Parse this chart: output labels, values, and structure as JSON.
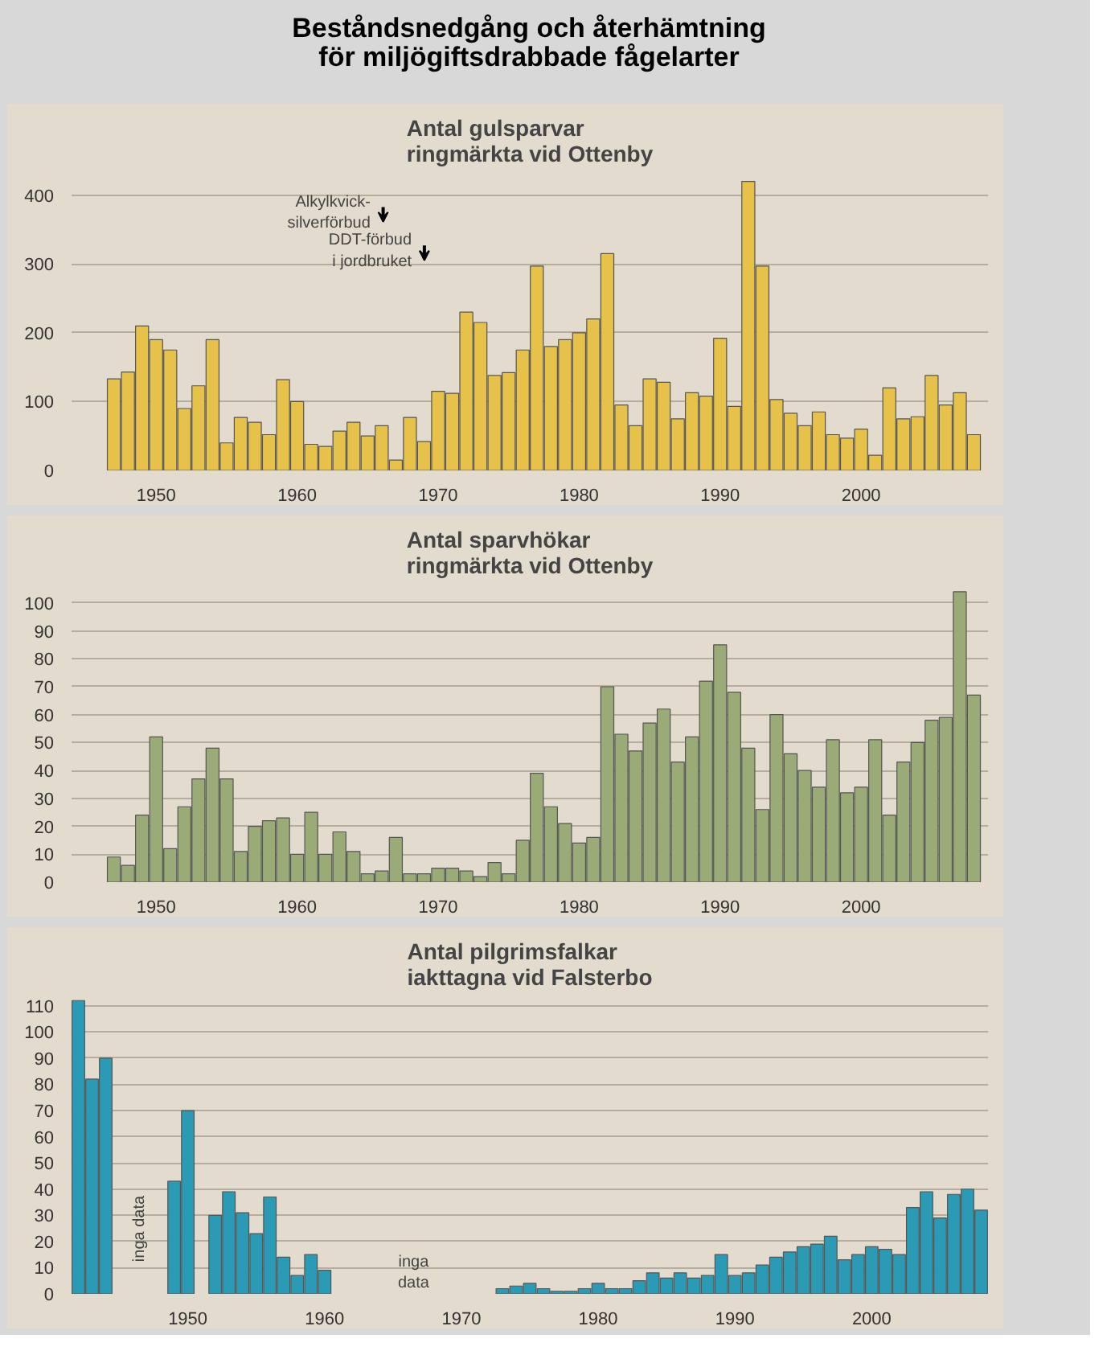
{
  "chart_data": [
    {
      "type": "bar",
      "title": "Antal gulsparvar\nringmärkta vid Ottenby",
      "x": [
        1947,
        1948,
        1949,
        1950,
        1951,
        1952,
        1953,
        1954,
        1955,
        1956,
        1957,
        1958,
        1959,
        1960,
        1961,
        1962,
        1963,
        1964,
        1965,
        1966,
        1967,
        1968,
        1969,
        1970,
        1971,
        1972,
        1973,
        1974,
        1975,
        1976,
        1977,
        1978,
        1979,
        1980,
        1981,
        1982,
        1983,
        1984,
        1985,
        1986,
        1987,
        1988,
        1989,
        1990,
        1991,
        1992,
        1993,
        1994,
        1995,
        1996,
        1997,
        1998,
        1999,
        2000,
        2001,
        2002,
        2003,
        2004,
        2005,
        2006,
        2007,
        2008
      ],
      "series": [
        {
          "color": "#e6c24a",
          "values": [
            133,
            143,
            210,
            190,
            175,
            90,
            123,
            190,
            40,
            77,
            70,
            52,
            132,
            100,
            38,
            35,
            57,
            70,
            50,
            65,
            15,
            77,
            42,
            115,
            112,
            230,
            215,
            138,
            142,
            175,
            297,
            180,
            190,
            200,
            220,
            315,
            95,
            65,
            133,
            128,
            75,
            113,
            108,
            192,
            93,
            420,
            297,
            103,
            83,
            65,
            85,
            52,
            47,
            60,
            22,
            120,
            75,
            78,
            138,
            95,
            113,
            52
          ]
        }
      ],
      "xlim": [
        1944,
        2009
      ],
      "ylim": [
        0,
        430
      ],
      "xticks": [
        1950,
        1960,
        1970,
        1980,
        1990,
        2000
      ],
      "yticks": [
        0,
        100,
        200,
        300,
        400
      ],
      "grid": "y",
      "annotations": [
        "Beståndsnedgång och återhämtning\nför miljögiftsdrabbade fågelarter",
        "Alkylkvick-\nsilverförbud",
        "DDT-förbud\ni jordbruket"
      ]
    },
    {
      "type": "bar",
      "title": "Antal sparvhökar\nringmärkta vid Ottenby",
      "x": [
        1947,
        1948,
        1949,
        1950,
        1951,
        1952,
        1953,
        1954,
        1955,
        1956,
        1957,
        1958,
        1959,
        1960,
        1961,
        1962,
        1963,
        1964,
        1965,
        1966,
        1967,
        1968,
        1969,
        1970,
        1971,
        1972,
        1973,
        1974,
        1975,
        1976,
        1977,
        1978,
        1979,
        1980,
        1981,
        1982,
        1983,
        1984,
        1985,
        1986,
        1987,
        1988,
        1989,
        1990,
        1991,
        1992,
        1993,
        1994,
        1995,
        1996,
        1997,
        1998,
        1999,
        2000,
        2001,
        2002,
        2003,
        2004,
        2005,
        2006,
        2007,
        2008
      ],
      "series": [
        {
          "color": "#9aab78",
          "values": [
            9,
            6,
            24,
            52,
            12,
            27,
            37,
            48,
            37,
            11,
            20,
            22,
            23,
            10,
            25,
            10,
            18,
            11,
            3,
            4,
            16,
            3,
            3,
            5,
            5,
            4,
            2,
            7,
            3,
            15,
            39,
            27,
            21,
            14,
            16,
            70,
            53,
            47,
            57,
            62,
            43,
            52,
            72,
            85,
            68,
            48,
            26,
            60,
            46,
            40,
            34,
            51,
            32,
            34,
            51,
            24,
            43,
            50,
            58,
            59,
            104,
            67
          ]
        }
      ],
      "xlim": [
        1944,
        2009
      ],
      "ylim": [
        0,
        106
      ],
      "xticks": [
        1950,
        1960,
        1970,
        1980,
        1990,
        2000
      ],
      "yticks": [
        0,
        10,
        20,
        30,
        40,
        50,
        60,
        70,
        80,
        90,
        100
      ],
      "grid": "y"
    },
    {
      "type": "bar",
      "title": "Antal pilgrimsfalkar\niakttagna vid Falsterbo",
      "x": [
        1942,
        1943,
        1944,
        1945,
        1946,
        1947,
        1948,
        1949,
        1950,
        1951,
        1952,
        1953,
        1954,
        1955,
        1956,
        1957,
        1958,
        1959,
        1960,
        1961,
        1962,
        1963,
        1964,
        1965,
        1966,
        1967,
        1968,
        1969,
        1970,
        1971,
        1972,
        1973,
        1974,
        1975,
        1976,
        1977,
        1978,
        1979,
        1980,
        1981,
        1982,
        1983,
        1984,
        1985,
        1986,
        1987,
        1988,
        1989,
        1990,
        1991,
        1992,
        1993,
        1994,
        1995,
        1996,
        1997,
        1998,
        1999,
        2000,
        2001,
        2002,
        2003,
        2004,
        2005,
        2006,
        2007,
        2008
      ],
      "series": [
        {
          "color": "#2b9bb5",
          "values": [
            112,
            82,
            90,
            null,
            null,
            null,
            null,
            43,
            70,
            null,
            30,
            39,
            31,
            23,
            37,
            14,
            7,
            15,
            9,
            null,
            null,
            null,
            null,
            null,
            null,
            null,
            null,
            null,
            null,
            null,
            null,
            2,
            3,
            4,
            2,
            1,
            1,
            2,
            4,
            2,
            2,
            5,
            8,
            6,
            8,
            6,
            7,
            15,
            7,
            8,
            11,
            14,
            16,
            18,
            19,
            22,
            13,
            15,
            18,
            17,
            15,
            33,
            39,
            29,
            38,
            40,
            32
          ]
        }
      ],
      "xlim": [
        1941.5,
        2008.5
      ],
      "ylim": [
        0,
        113
      ],
      "xticks": [
        1950,
        1960,
        1970,
        1980,
        1990,
        2000
      ],
      "yticks": [
        0,
        10,
        20,
        30,
        40,
        50,
        60,
        70,
        80,
        90,
        100,
        110
      ],
      "grid": "y",
      "annotations": [
        "inga data",
        "inga\ndata"
      ]
    }
  ]
}
